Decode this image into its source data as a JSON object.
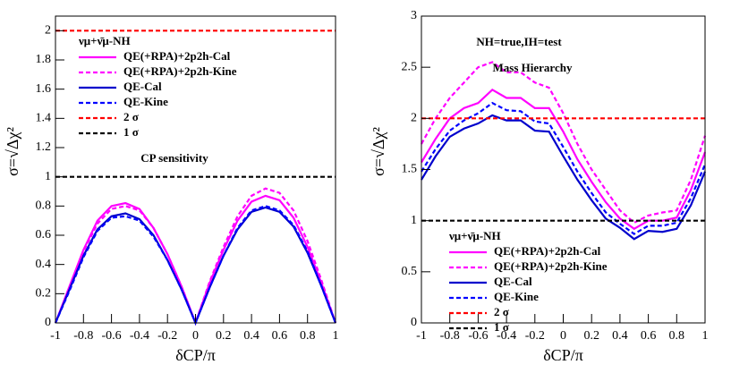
{
  "chart_data": [
    {
      "type": "line",
      "legend_title": "νμ+ν̄μ-NH",
      "annotations": [
        "CP sensitivity"
      ],
      "xlabel": "δCP/π",
      "ylabel": "σ=√Δχ²",
      "x": [
        -1,
        -0.9,
        -0.8,
        -0.7,
        -0.6,
        -0.5,
        -0.4,
        -0.3,
        -0.2,
        -0.1,
        0,
        0.1,
        0.2,
        0.3,
        0.4,
        0.5,
        0.6,
        0.7,
        0.8,
        0.9,
        1
      ],
      "xlim": [
        -1,
        1
      ],
      "xticks": [
        -1,
        -0.8,
        -0.6,
        -0.4,
        -0.2,
        0,
        0.2,
        0.4,
        0.6,
        0.8,
        1
      ],
      "ylim": [
        0,
        2.1
      ],
      "yticks": [
        0,
        0.2,
        0.4,
        0.6,
        0.8,
        1,
        1.2,
        1.4,
        1.6,
        1.8,
        2
      ],
      "series": [
        {
          "name": "QE(+RPA)+2p2h-Cal",
          "color": "#ff00ff",
          "style": "solid",
          "values": [
            0,
            0.25,
            0.5,
            0.7,
            0.8,
            0.82,
            0.78,
            0.65,
            0.47,
            0.25,
            0,
            0.27,
            0.5,
            0.7,
            0.83,
            0.87,
            0.84,
            0.72,
            0.52,
            0.27,
            0
          ]
        },
        {
          "name": "QE(+RPA)+2p2h-Kine",
          "color": "#ff00ff",
          "style": "dashed",
          "values": [
            0,
            0.24,
            0.49,
            0.68,
            0.78,
            0.8,
            0.77,
            0.65,
            0.47,
            0.25,
            0,
            0.28,
            0.52,
            0.73,
            0.87,
            0.92,
            0.89,
            0.77,
            0.56,
            0.29,
            0
          ]
        },
        {
          "name": "QE-Cal",
          "color": "#0000cc",
          "style": "solid",
          "values": [
            0,
            0.23,
            0.46,
            0.64,
            0.73,
            0.75,
            0.71,
            0.6,
            0.43,
            0.23,
            0,
            0.24,
            0.46,
            0.64,
            0.76,
            0.79,
            0.76,
            0.66,
            0.48,
            0.25,
            0
          ]
        },
        {
          "name": "QE-Kine",
          "color": "#0000ff",
          "style": "dashed",
          "values": [
            0,
            0.22,
            0.45,
            0.63,
            0.72,
            0.73,
            0.7,
            0.59,
            0.43,
            0.23,
            0,
            0.24,
            0.46,
            0.65,
            0.77,
            0.8,
            0.77,
            0.67,
            0.49,
            0.25,
            0
          ]
        },
        {
          "name": "2  σ",
          "color": "#ff0000",
          "style": "dashed",
          "values": [
            2,
            2,
            2,
            2,
            2,
            2,
            2,
            2,
            2,
            2,
            2,
            2,
            2,
            2,
            2,
            2,
            2,
            2,
            2,
            2,
            2
          ]
        },
        {
          "name": "1  σ",
          "color": "#000000",
          "style": "dashed",
          "values": [
            1,
            1,
            1,
            1,
            1,
            1,
            1,
            1,
            1,
            1,
            1,
            1,
            1,
            1,
            1,
            1,
            1,
            1,
            1,
            1,
            1
          ]
        }
      ]
    },
    {
      "type": "line",
      "legend_title": "νμ+ν̄μ-NH",
      "annotations": [
        "NH=true,IH=test",
        "Mass Hierarchy"
      ],
      "xlabel": "δCP/π",
      "ylabel": "σ=√Δχ²",
      "x": [
        -1,
        -0.9,
        -0.8,
        -0.7,
        -0.6,
        -0.5,
        -0.4,
        -0.3,
        -0.2,
        -0.1,
        0,
        0.1,
        0.2,
        0.3,
        0.4,
        0.5,
        0.6,
        0.7,
        0.8,
        0.9,
        1
      ],
      "xlim": [
        -1,
        1
      ],
      "xticks": [
        -1,
        -0.8,
        -0.6,
        -0.4,
        -0.2,
        0,
        0.2,
        0.4,
        0.6,
        0.8,
        1
      ],
      "ylim": [
        0,
        3
      ],
      "yticks": [
        0,
        0.5,
        1,
        1.5,
        2,
        2.5,
        3
      ],
      "series": [
        {
          "name": "QE(+RPA)+2p2h-Cal",
          "color": "#ff00ff",
          "style": "solid",
          "values": [
            1.57,
            1.8,
            2.0,
            2.1,
            2.15,
            2.28,
            2.2,
            2.2,
            2.1,
            2.1,
            1.87,
            1.6,
            1.38,
            1.18,
            1.02,
            0.92,
            1.0,
            1.0,
            1.03,
            1.3,
            1.67
          ]
        },
        {
          "name": "QE(+RPA)+2p2h-Kine",
          "color": "#ff00ff",
          "style": "dashed",
          "values": [
            1.75,
            2.0,
            2.2,
            2.35,
            2.5,
            2.55,
            2.45,
            2.45,
            2.35,
            2.3,
            2.05,
            1.75,
            1.5,
            1.3,
            1.1,
            0.98,
            1.05,
            1.08,
            1.1,
            1.4,
            1.83
          ]
        },
        {
          "name": "QE-Cal",
          "color": "#0000cc",
          "style": "solid",
          "values": [
            1.4,
            1.63,
            1.82,
            1.9,
            1.95,
            2.03,
            1.98,
            1.98,
            1.88,
            1.87,
            1.63,
            1.4,
            1.2,
            1.02,
            0.93,
            0.82,
            0.9,
            0.89,
            0.92,
            1.15,
            1.48
          ]
        },
        {
          "name": "QE-Kine",
          "color": "#0000ff",
          "style": "dashed",
          "values": [
            1.48,
            1.7,
            1.88,
            1.98,
            2.05,
            2.15,
            2.08,
            2.07,
            1.97,
            1.95,
            1.72,
            1.48,
            1.27,
            1.08,
            0.97,
            0.87,
            0.95,
            0.95,
            0.98,
            1.22,
            1.55
          ]
        },
        {
          "name": "2  σ",
          "color": "#ff0000",
          "style": "dashed",
          "values": [
            2,
            2,
            2,
            2,
            2,
            2,
            2,
            2,
            2,
            2,
            2,
            2,
            2,
            2,
            2,
            2,
            2,
            2,
            2,
            2,
            2
          ]
        },
        {
          "name": "1  σ",
          "color": "#000000",
          "style": "dashed",
          "values": [
            1,
            1,
            1,
            1,
            1,
            1,
            1,
            1,
            1,
            1,
            1,
            1,
            1,
            1,
            1,
            1,
            1,
            1,
            1,
            1,
            1
          ]
        }
      ]
    }
  ]
}
